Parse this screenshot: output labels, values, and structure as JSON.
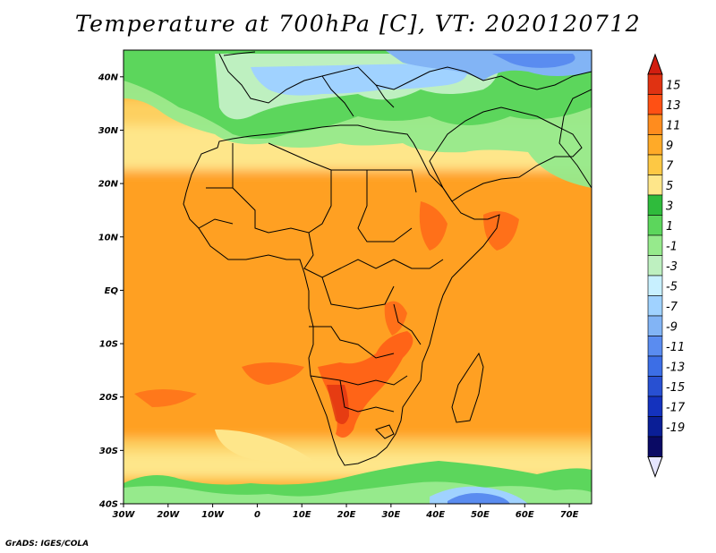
{
  "title": "Temperature at 700hPa [C], VT: 2020120712",
  "credit": "GrADS: IGES/COLA",
  "map": {
    "lon_range": [
      -30,
      75
    ],
    "lat_range": [
      -40,
      45
    ],
    "lon_ticks": [
      "30W",
      "20W",
      "10W",
      "0",
      "10E",
      "20E",
      "30E",
      "40E",
      "50E",
      "60E",
      "70E"
    ],
    "lat_ticks": [
      "40N",
      "30N",
      "20N",
      "10N",
      "EQ",
      "10S",
      "20S",
      "30S",
      "40S"
    ]
  },
  "colorbar": {
    "labels": [
      "15",
      "13",
      "11",
      "9",
      "7",
      "5",
      "3",
      "1",
      "-1",
      "-3",
      "-5",
      "-7",
      "-9",
      "-11",
      "-13",
      "-15",
      "-17",
      "-19"
    ],
    "colors": [
      "#e03212",
      "#ff5014",
      "#ff8c1e",
      "#ffaa28",
      "#fdc844",
      "#fee68a",
      "#2fbb3c",
      "#5cd65c",
      "#96ea8c",
      "#bef0c0",
      "#c8f0ff",
      "#a0d2ff",
      "#82b4f5",
      "#5a8cf0",
      "#3c6ee6",
      "#2850d2",
      "#1432be",
      "#0a1e96",
      "#0a0a64"
    ],
    "top_arrow_color": "#d11e10",
    "bottom_arrow_color": "#e6e6ff"
  }
}
